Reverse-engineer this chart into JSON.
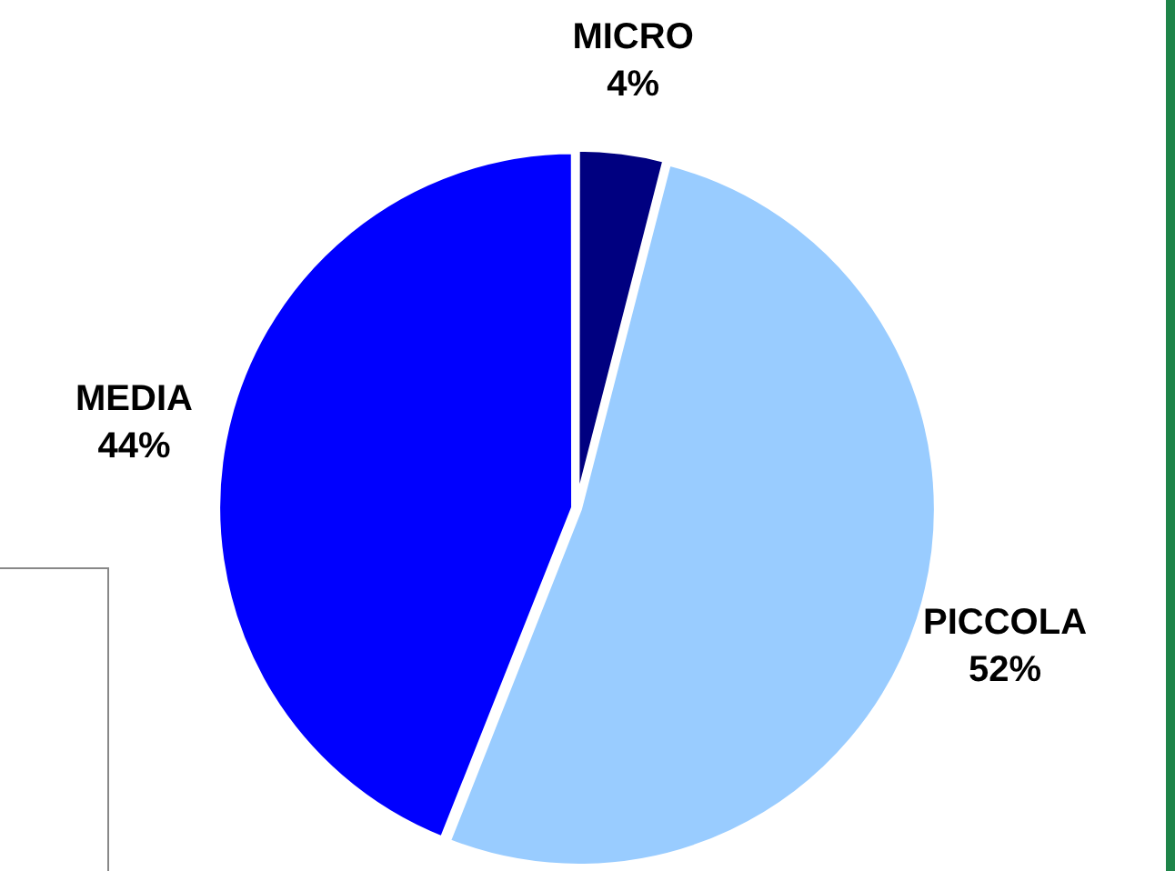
{
  "chart_data": {
    "type": "pie",
    "categories": [
      "MICRO",
      "PICCOLA",
      "MEDIA"
    ],
    "values": [
      4,
      52,
      44
    ],
    "colors": [
      "#000080",
      "#99ccff",
      "#0000ff"
    ],
    "value_labels": [
      "4%",
      "52%",
      "44%"
    ],
    "legend": false
  }
}
